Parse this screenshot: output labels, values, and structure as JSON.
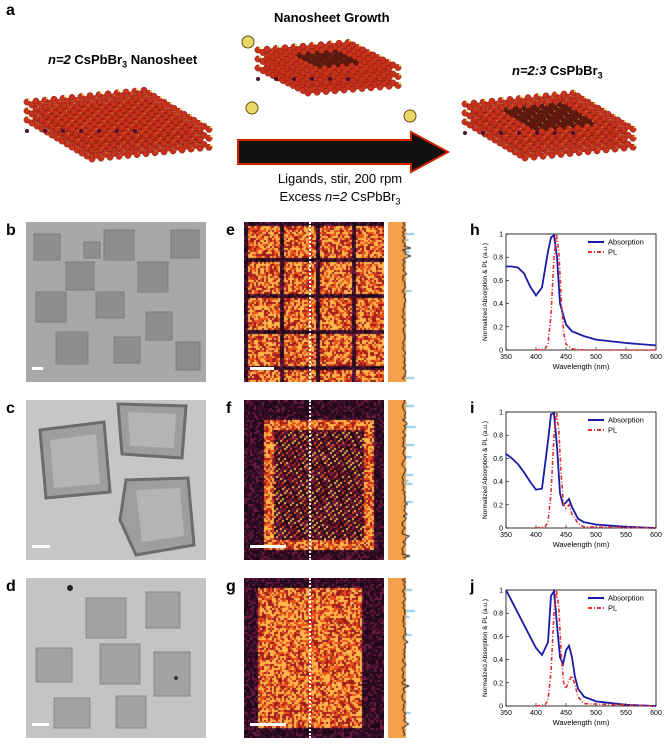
{
  "panel_a": {
    "label": "a",
    "left_title_italic": "n=2",
    "left_title_rest": " CsPbBr",
    "left_title_sub": "3",
    "left_title_end": " Nanosheet",
    "center_title": "Nanosheet Growth",
    "right_title_italic": "n=2:3",
    "right_title_rest": " CsPbBr",
    "right_title_sub": "3",
    "arrow_line1": "Ligands, stir, 200 rpm",
    "arrow_line2_pre": "Excess ",
    "arrow_line2_italic": "n=2",
    "arrow_line2_post": " CsPbBr",
    "arrow_line2_sub": "3",
    "colors": {
      "lead": "#c8321c",
      "halide": "#e8d86a",
      "cesium": "#4a1030",
      "arrow": "#111111",
      "arrow_outline": "#cc2200"
    }
  },
  "labels": {
    "b": "b",
    "c": "c",
    "d": "d",
    "e": "e",
    "f": "f",
    "g": "g",
    "h": "h",
    "i": "i",
    "j": "j"
  },
  "chart_data": [
    {
      "type": "line",
      "panel": "h",
      "xlabel": "Wavelength (nm)",
      "ylabel": "Normalized Absorption & PL (a.u.)",
      "xlim": [
        350,
        600
      ],
      "ylim": [
        0,
        1
      ],
      "xticks": [
        350,
        400,
        450,
        500,
        550,
        600
      ],
      "yticks": [
        0,
        0.2,
        0.4,
        0.6,
        0.8,
        1
      ],
      "ytick_labels": [
        "0",
        "0.2",
        "0.4",
        "0.6",
        "0.8",
        "1"
      ],
      "legend_position": "top-right",
      "series": [
        {
          "name": "Absorption",
          "color": "#1a1aa6",
          "style": "solid",
          "x": [
            350,
            360,
            370,
            380,
            390,
            400,
            410,
            420,
            425,
            430,
            435,
            440,
            450,
            460,
            480,
            500,
            550,
            600
          ],
          "y": [
            0.72,
            0.72,
            0.71,
            0.66,
            0.55,
            0.47,
            0.54,
            0.85,
            0.97,
            0.99,
            0.8,
            0.4,
            0.22,
            0.16,
            0.12,
            0.09,
            0.06,
            0.04
          ]
        },
        {
          "name": "PL",
          "color": "#e03030",
          "style": "dashdot",
          "x": [
            400,
            415,
            420,
            425,
            430,
            434,
            438,
            442,
            446,
            450,
            460,
            480,
            600
          ],
          "y": [
            0,
            0.01,
            0.05,
            0.3,
            0.8,
            1.0,
            0.85,
            0.45,
            0.15,
            0.05,
            0.01,
            0,
            0
          ]
        }
      ]
    },
    {
      "type": "line",
      "panel": "i",
      "xlabel": "Wavelength (nm)",
      "ylabel": "Normalized Absorption & PL (a.u.)",
      "xlim": [
        350,
        600
      ],
      "ylim": [
        0,
        1
      ],
      "xticks": [
        350,
        400,
        450,
        500,
        550,
        600
      ],
      "yticks": [
        0,
        0.2,
        0.4,
        0.6,
        0.8,
        1
      ],
      "ytick_labels": [
        "0",
        "0.2",
        "0.4",
        "0.6",
        "0.8",
        "1"
      ],
      "legend_position": "top-right",
      "series": [
        {
          "name": "Absorption",
          "color": "#1a1aa6",
          "style": "solid",
          "x": [
            350,
            360,
            370,
            380,
            390,
            400,
            410,
            420,
            425,
            430,
            435,
            440,
            445,
            450,
            455,
            460,
            470,
            480,
            500,
            550,
            600
          ],
          "y": [
            0.64,
            0.6,
            0.55,
            0.48,
            0.4,
            0.33,
            0.34,
            0.75,
            0.98,
            0.99,
            0.7,
            0.3,
            0.2,
            0.22,
            0.25,
            0.18,
            0.08,
            0.05,
            0.03,
            0.01,
            0.0
          ]
        },
        {
          "name": "PL",
          "color": "#e03030",
          "style": "dashdot",
          "x": [
            400,
            415,
            420,
            425,
            430,
            434,
            438,
            442,
            446,
            450,
            455,
            460,
            470,
            480,
            600
          ],
          "y": [
            0,
            0.01,
            0.05,
            0.3,
            0.8,
            1.0,
            0.85,
            0.45,
            0.2,
            0.17,
            0.2,
            0.12,
            0.04,
            0.01,
            0
          ]
        }
      ]
    },
    {
      "type": "line",
      "panel": "j",
      "xlabel": "Wavelength (nm)",
      "ylabel": "Normalized Absorption & PL (a.u.)",
      "xlim": [
        350,
        600
      ],
      "ylim": [
        0,
        1
      ],
      "xticks": [
        350,
        400,
        450,
        500,
        550,
        600
      ],
      "yticks": [
        0,
        0.2,
        0.4,
        0.6,
        0.8,
        1
      ],
      "ytick_labels": [
        "0",
        "0.2",
        "0.4",
        "0.6",
        "0.8",
        "1"
      ],
      "legend_position": "top-right",
      "series": [
        {
          "name": "Absorption",
          "color": "#1a1aa6",
          "style": "solid",
          "x": [
            350,
            360,
            370,
            380,
            390,
            400,
            410,
            420,
            425,
            430,
            435,
            440,
            445,
            450,
            455,
            460,
            465,
            470,
            480,
            500,
            550,
            600
          ],
          "y": [
            1.0,
            0.9,
            0.8,
            0.7,
            0.6,
            0.5,
            0.44,
            0.55,
            0.95,
            0.99,
            0.7,
            0.42,
            0.36,
            0.48,
            0.52,
            0.42,
            0.25,
            0.15,
            0.08,
            0.04,
            0.01,
            0.0
          ]
        },
        {
          "name": "PL",
          "color": "#e03030",
          "style": "dashdot",
          "x": [
            400,
            415,
            420,
            425,
            430,
            434,
            438,
            442,
            446,
            450,
            455,
            460,
            465,
            470,
            480,
            600
          ],
          "y": [
            0,
            0.01,
            0.05,
            0.3,
            0.8,
            1.0,
            0.85,
            0.45,
            0.2,
            0.15,
            0.22,
            0.26,
            0.18,
            0.08,
            0.02,
            0
          ]
        }
      ]
    }
  ]
}
